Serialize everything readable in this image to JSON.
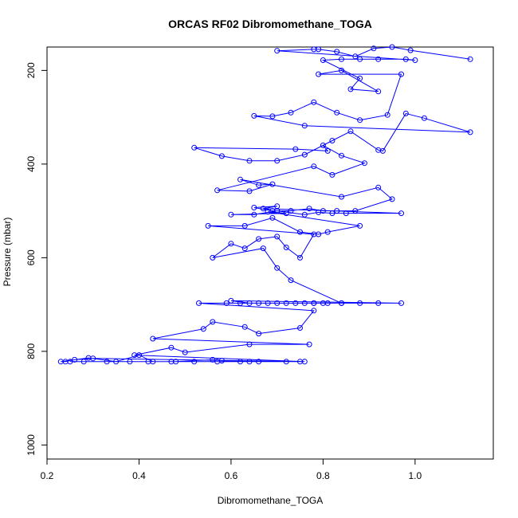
{
  "chart_data": {
    "type": "line",
    "title": "ORCAS RF02 Dibromomethane_TOGA",
    "xlabel": "Dibromomethane_TOGA",
    "ylabel": "Pressure (mbar)",
    "xlim": [
      0.2,
      1.17
    ],
    "ylim": [
      1030,
      150
    ],
    "y_reversed": true,
    "x_ticks": [
      0.2,
      0.4,
      0.6,
      0.8,
      1.0
    ],
    "x_tick_labels": [
      "0.2",
      "0.4",
      "0.6",
      "0.8",
      "1.0"
    ],
    "y_ticks": [
      200,
      400,
      600,
      800,
      1000
    ],
    "y_tick_labels": [
      "200",
      "400",
      "600",
      "800",
      "1000"
    ],
    "grid": false,
    "legend": "none",
    "series": [
      {
        "color": "#0000ff",
        "marker": "open-circle",
        "x": [
          0.25,
          0.28,
          0.33,
          0.38,
          0.42,
          0.47,
          0.52,
          0.57,
          0.62,
          0.66,
          0.72,
          0.75,
          0.3,
          0.26,
          0.24,
          0.23,
          0.29,
          0.35,
          0.4,
          0.43,
          0.48,
          0.56,
          0.58,
          0.64,
          0.76,
          0.39,
          0.47,
          0.5,
          0.64,
          0.77,
          0.43,
          0.54,
          0.56,
          0.63,
          0.66,
          0.75,
          0.78,
          0.53,
          0.59,
          0.62,
          0.66,
          0.7,
          0.74,
          0.78,
          0.81,
          0.84,
          0.88,
          0.92,
          0.97,
          0.6,
          0.64,
          0.68,
          0.72,
          0.76,
          0.78,
          0.8,
          0.84,
          0.73,
          0.7,
          0.67,
          0.56,
          0.6,
          0.63,
          0.66,
          0.7,
          0.72,
          0.75,
          0.78,
          0.55,
          0.63,
          0.69,
          0.75,
          0.79,
          0.81,
          0.88,
          0.68,
          0.72,
          0.6,
          0.65,
          0.7,
          0.76,
          0.79,
          0.82,
          0.85,
          0.97,
          0.67,
          0.7,
          0.65,
          0.69,
          0.73,
          0.77,
          0.8,
          0.83,
          0.87,
          0.95,
          0.92,
          0.84,
          0.62,
          0.66,
          0.69,
          0.64,
          0.57,
          0.78,
          0.82,
          0.89,
          0.84,
          0.8,
          0.81,
          0.74,
          0.52,
          0.58,
          0.64,
          0.7,
          0.76,
          0.82,
          0.86,
          0.92,
          0.93,
          0.98,
          1.02,
          1.12,
          0.76,
          0.65,
          0.69,
          0.73,
          0.78,
          0.83,
          0.88,
          0.94,
          0.97,
          0.79,
          0.84,
          0.92,
          0.86,
          0.88,
          0.8,
          0.84,
          0.88,
          0.92,
          0.98,
          1.0,
          0.7,
          0.78,
          0.79,
          0.83,
          0.87,
          0.91,
          0.95,
          0.99,
          1.12
        ],
        "y": [
          822,
          822,
          822,
          822,
          822,
          822,
          822,
          822,
          822,
          822,
          822,
          822,
          815,
          818,
          822,
          822,
          814,
          822,
          808,
          822,
          822,
          818,
          820,
          822,
          822,
          808,
          792,
          802,
          785,
          785,
          773,
          752,
          737,
          748,
          762,
          750,
          713,
          697,
          697,
          697,
          697,
          697,
          697,
          697,
          697,
          697,
          697,
          697,
          697,
          692,
          697,
          697,
          697,
          697,
          697,
          697,
          697,
          648,
          622,
          580,
          600,
          570,
          580,
          560,
          555,
          578,
          600,
          550,
          532,
          532,
          515,
          545,
          550,
          545,
          532,
          502,
          505,
          508,
          508,
          500,
          508,
          503,
          505,
          505,
          505,
          495,
          490,
          493,
          500,
          500,
          495,
          500,
          500,
          500,
          475,
          450,
          470,
          433,
          445,
          443,
          458,
          456,
          405,
          423,
          398,
          382,
          360,
          372,
          368,
          365,
          383,
          393,
          393,
          380,
          350,
          330,
          370,
          372,
          292,
          302,
          332,
          318,
          297,
          298,
          290,
          268,
          290,
          306,
          295,
          208,
          208,
          200,
          245,
          240,
          217,
          178,
          176,
          176,
          176,
          176,
          178,
          158,
          155,
          155,
          160,
          170,
          153,
          150,
          157,
          176
        ]
      }
    ]
  }
}
